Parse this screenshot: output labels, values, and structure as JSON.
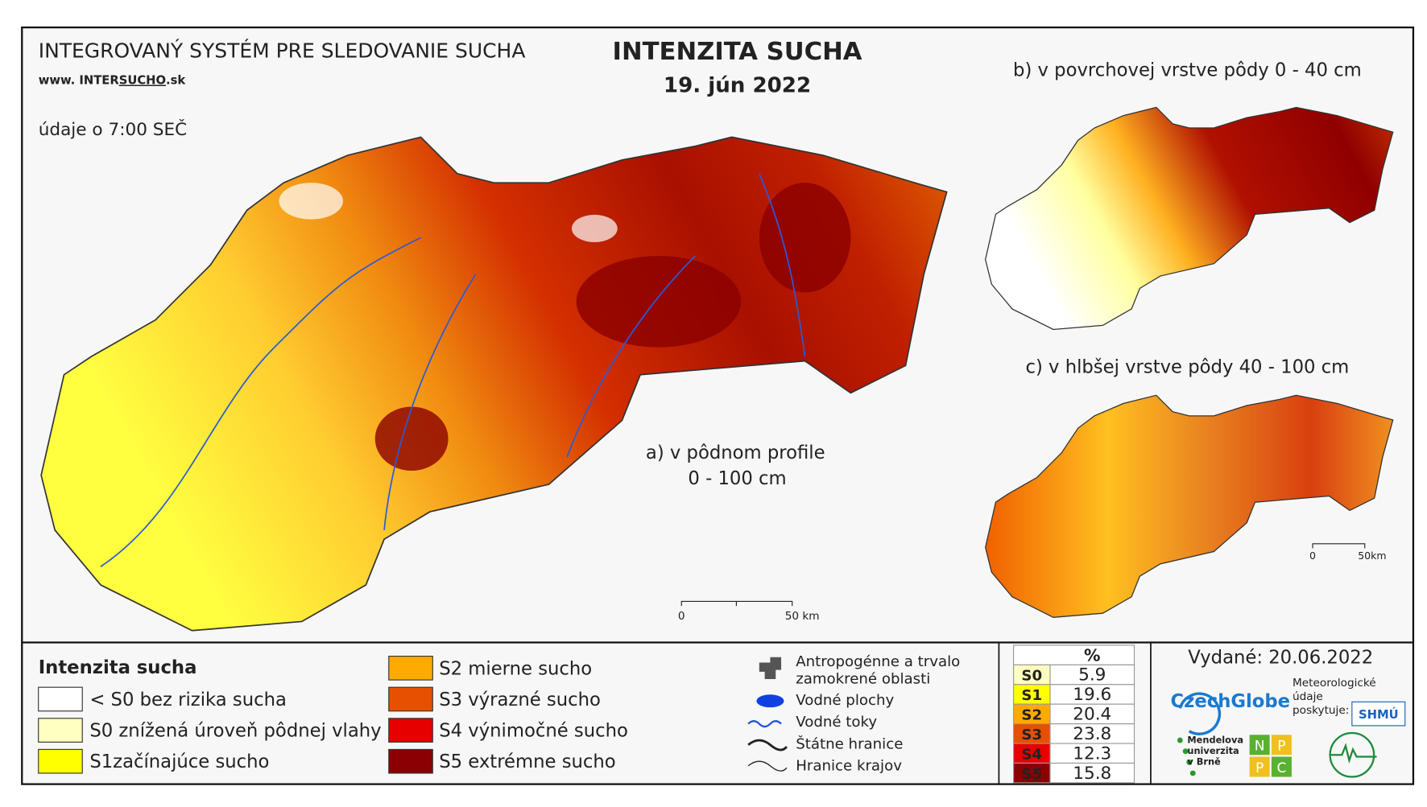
{
  "header": {
    "system": "INTEGROVANÝ SYSTÉM PRE SLEDOVANIE SUCHA",
    "website_prefix": "www. INTER",
    "website_mid": "SUCHO",
    "website_suffix": ".sk",
    "time_note": "údaje o 7:00 SEČ",
    "title": "INTENZITA SUCHA",
    "date": "19. jún 2022"
  },
  "maps": {
    "a_label": "a) v pôdnom profile",
    "a_depth": "0 - 100 cm",
    "b_label": "b) v povrchovej vrstve pôdy 0 - 40 cm",
    "c_label": "c) v hlbšej vrstve pôdy 40 - 100 cm",
    "scale_zero": "0",
    "scale_main": "50 km",
    "scale_small": "50km"
  },
  "legend": {
    "title": "Intenzita sucha",
    "items": [
      {
        "label": "< S0 bez rizika sucha",
        "color": "#ffffff"
      },
      {
        "label": "S0 znížená úroveň pôdnej vlahy",
        "color": "#ffffc0"
      },
      {
        "label": "S1začínajúce sucho",
        "color": "#ffff00"
      },
      {
        "label": "S2 mierne sucho",
        "color": "#ffaa00"
      },
      {
        "label": "S3 výrazné sucho",
        "color": "#e65000"
      },
      {
        "label": "S4 výnimočné sucho",
        "color": "#e60000"
      },
      {
        "label": "S5 extrémne sucho",
        "color": "#8b0000"
      }
    ]
  },
  "symbols": [
    "Antropogénne a trvalo zamokrené oblasti",
    "Vodné plochy",
    "Vodné toky",
    "Štátne hranice",
    "Hranice krajov"
  ],
  "stats": {
    "header": "%",
    "rows": [
      {
        "class": "S0",
        "value": 5.9,
        "color": "#ffffc0"
      },
      {
        "class": "S1",
        "value": 19.6,
        "color": "#ffff00"
      },
      {
        "class": "S2",
        "value": 20.4,
        "color": "#ffaa00"
      },
      {
        "class": "S3",
        "value": 23.8,
        "color": "#e65000"
      },
      {
        "class": "S4",
        "value": 12.3,
        "color": "#e60000"
      },
      {
        "class": "S5",
        "value": 15.8,
        "color": "#8b0000"
      }
    ]
  },
  "issued": "Vydané: 20.06.2022",
  "logos": {
    "czechglobe": "CzechGlobe",
    "meteo": "Meteorologické údaje poskytuje:",
    "shmu": "SHMÚ",
    "mendel": "Mendelova univerzita v Brně",
    "npc": [
      "N",
      "P",
      "P",
      "C"
    ]
  }
}
